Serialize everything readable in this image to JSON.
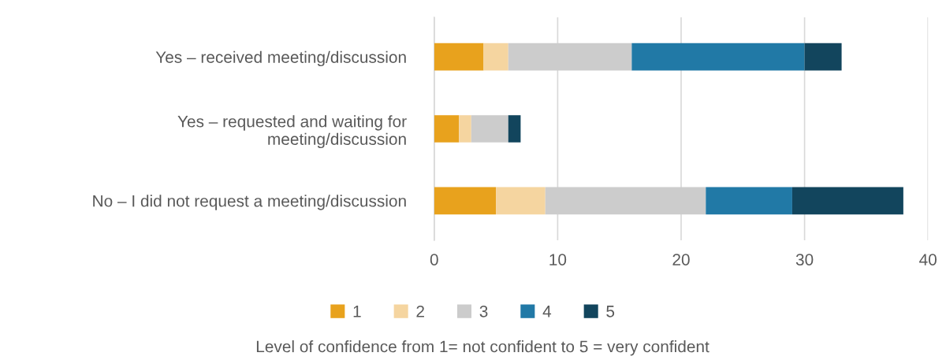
{
  "chart_data": {
    "type": "bar",
    "orientation": "horizontal",
    "stacked": true,
    "categories": [
      "Yes – received meeting/discussion",
      "Yes – requested and waiting for\nmeeting/discussion",
      "No – I did not request a meeting/discussion"
    ],
    "series": [
      {
        "name": "1",
        "color": "#e8a21d",
        "values": [
          4,
          2,
          5
        ]
      },
      {
        "name": "2",
        "color": "#f5d5a0",
        "values": [
          2,
          1,
          4
        ]
      },
      {
        "name": "3",
        "color": "#cccccc",
        "values": [
          10,
          3,
          13
        ]
      },
      {
        "name": "4",
        "color": "#2179a6",
        "values": [
          14,
          0,
          7
        ]
      },
      {
        "name": "5",
        "color": "#12455d",
        "values": [
          3,
          1,
          9
        ]
      }
    ],
    "xlim": [
      0,
      40
    ],
    "xticks": [
      0,
      10,
      20,
      30,
      40
    ],
    "grid": "x",
    "legend": "bottom",
    "xlabel": "Level of confidence from 1= not confident to 5 = very confident"
  }
}
